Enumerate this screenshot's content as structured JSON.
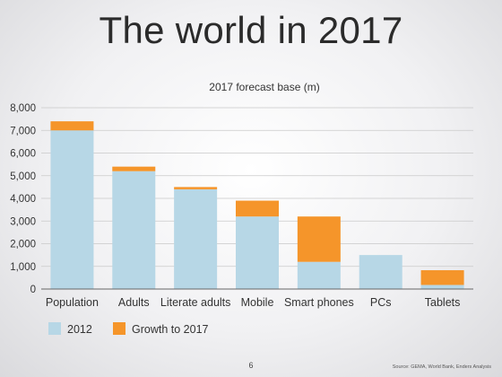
{
  "slide": {
    "title": "The world in 2017",
    "page_number": "6",
    "source": "Source: GEMA, World Bank, Enders Analysis"
  },
  "colors": {
    "base": "#b7d7e6",
    "growth": "#f5952a",
    "grid": "#c9c9c9",
    "axis": "#666666"
  },
  "chart_data": {
    "type": "bar",
    "stacked": true,
    "title": "2017 forecast base (m)",
    "xlabel": "",
    "ylabel": "",
    "ylim": [
      0,
      8000
    ],
    "yticks": [
      "0",
      "1,000",
      "2,000",
      "3,000",
      "4,000",
      "5,000",
      "6,000",
      "7,000",
      "8,000"
    ],
    "ytick_values": [
      0,
      1000,
      2000,
      3000,
      4000,
      5000,
      6000,
      7000,
      8000
    ],
    "grid": true,
    "legend": "bottom-left",
    "categories": [
      "Population",
      "Adults",
      "Literate adults",
      "Mobile",
      "Smart phones",
      "PCs",
      "Tablets"
    ],
    "series": [
      {
        "name": "2012",
        "values": [
          7000,
          5200,
          4400,
          3200,
          1200,
          1500,
          180
        ],
        "color": "#b7d7e6"
      },
      {
        "name": "Growth to 2017",
        "values": [
          400,
          200,
          100,
          700,
          2000,
          0,
          650
        ],
        "color": "#f5952a"
      }
    ]
  }
}
